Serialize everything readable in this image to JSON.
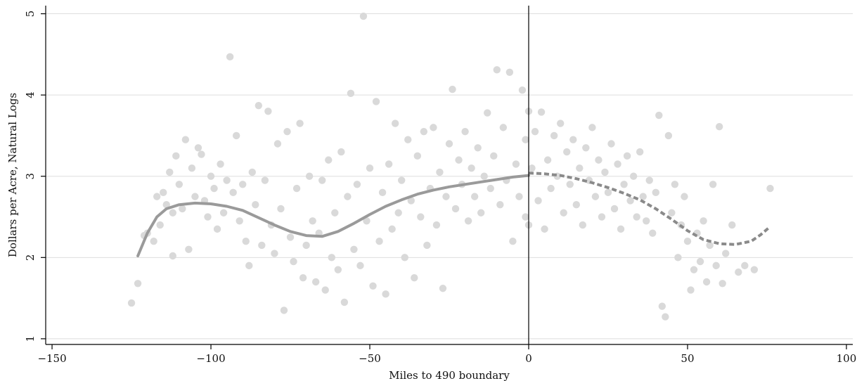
{
  "chart_data": {
    "type": "scatter",
    "title": "",
    "xlabel": "Miles to 490 boundary",
    "ylabel": "Dollars per Acre, Natural Logs",
    "xlim": [
      -152,
      102
    ],
    "ylim": [
      0.93,
      5.1
    ],
    "x_ticks": [
      -150,
      -100,
      -50,
      0,
      50,
      100
    ],
    "x_tick_labels": [
      "−150",
      "−100",
      "−50",
      "0",
      "50",
      "100"
    ],
    "y_ticks": [
      1,
      2,
      3,
      4,
      5
    ],
    "y_tick_labels": [
      "1",
      "2",
      "3",
      "4",
      "5"
    ],
    "grid": "horizontal",
    "legend": "none",
    "boundary_line_x": 0,
    "colors": {
      "points": "#d9d9d9",
      "fit_left": "#9a9a9a",
      "fit_right": "#8a8a8a",
      "grid": "#dedede",
      "axis": "#000000"
    },
    "series": [
      {
        "kind": "scatter",
        "values": [
          [
            -125,
            1.44
          ],
          [
            -123,
            1.68
          ],
          [
            -121,
            2.27
          ],
          [
            -120,
            2.3
          ],
          [
            -118,
            2.2
          ],
          [
            -117,
            2.75
          ],
          [
            -116,
            2.4
          ],
          [
            -115,
            2.8
          ],
          [
            -114,
            2.65
          ],
          [
            -113,
            3.05
          ],
          [
            -112,
            2.55
          ],
          [
            -112,
            2.02
          ],
          [
            -111,
            3.25
          ],
          [
            -110,
            2.9
          ],
          [
            -109,
            2.6
          ],
          [
            -108,
            3.45
          ],
          [
            -107,
            2.1
          ],
          [
            -106,
            3.1
          ],
          [
            -105,
            2.75
          ],
          [
            -104,
            3.35
          ],
          [
            -103,
            3.27
          ],
          [
            -102,
            2.7
          ],
          [
            -101,
            2.5
          ],
          [
            -100,
            3.0
          ],
          [
            -99,
            2.85
          ],
          [
            -98,
            2.35
          ],
          [
            -97,
            3.15
          ],
          [
            -96,
            2.55
          ],
          [
            -95,
            2.95
          ],
          [
            -94,
            4.47
          ],
          [
            -93,
            2.8
          ],
          [
            -92,
            3.5
          ],
          [
            -91,
            2.45
          ],
          [
            -90,
            2.9
          ],
          [
            -89,
            2.2
          ],
          [
            -88,
            1.9
          ],
          [
            -87,
            3.05
          ],
          [
            -86,
            2.65
          ],
          [
            -85,
            3.87
          ],
          [
            -84,
            2.15
          ],
          [
            -83,
            2.95
          ],
          [
            -82,
            3.8
          ],
          [
            -81,
            2.4
          ],
          [
            -80,
            2.05
          ],
          [
            -79,
            3.4
          ],
          [
            -78,
            2.6
          ],
          [
            -77,
            1.35
          ],
          [
            -76,
            3.55
          ],
          [
            -75,
            2.25
          ],
          [
            -74,
            1.95
          ],
          [
            -73,
            2.85
          ],
          [
            -72,
            3.65
          ],
          [
            -71,
            1.75
          ],
          [
            -70,
            2.15
          ],
          [
            -69,
            3.0
          ],
          [
            -68,
            2.45
          ],
          [
            -67,
            1.7
          ],
          [
            -66,
            2.3
          ],
          [
            -65,
            2.95
          ],
          [
            -64,
            1.6
          ],
          [
            -63,
            3.2
          ],
          [
            -62,
            2.0
          ],
          [
            -61,
            2.55
          ],
          [
            -60,
            1.85
          ],
          [
            -59,
            3.3
          ],
          [
            -58,
            1.45
          ],
          [
            -57,
            2.75
          ],
          [
            -56,
            4.02
          ],
          [
            -55,
            2.1
          ],
          [
            -54,
            2.9
          ],
          [
            -53,
            1.9
          ],
          [
            -52,
            4.97
          ],
          [
            -51,
            2.45
          ],
          [
            -50,
            3.1
          ],
          [
            -49,
            1.65
          ],
          [
            -48,
            3.92
          ],
          [
            -47,
            2.2
          ],
          [
            -46,
            2.8
          ],
          [
            -45,
            1.55
          ],
          [
            -44,
            3.15
          ],
          [
            -43,
            2.35
          ],
          [
            -42,
            3.65
          ],
          [
            -41,
            2.55
          ],
          [
            -40,
            2.95
          ],
          [
            -39,
            2.0
          ],
          [
            -38,
            3.45
          ],
          [
            -37,
            2.7
          ],
          [
            -36,
            1.75
          ],
          [
            -35,
            3.25
          ],
          [
            -34,
            2.5
          ],
          [
            -33,
            3.55
          ],
          [
            -32,
            2.15
          ],
          [
            -31,
            2.85
          ],
          [
            -30,
            3.6
          ],
          [
            -29,
            2.4
          ],
          [
            -28,
            3.05
          ],
          [
            -27,
            1.62
          ],
          [
            -26,
            2.75
          ],
          [
            -25,
            3.4
          ],
          [
            -24,
            4.07
          ],
          [
            -23,
            2.6
          ],
          [
            -22,
            3.2
          ],
          [
            -21,
            2.9
          ],
          [
            -20,
            3.55
          ],
          [
            -19,
            2.45
          ],
          [
            -18,
            3.1
          ],
          [
            -17,
            2.75
          ],
          [
            -16,
            3.35
          ],
          [
            -15,
            2.55
          ],
          [
            -14,
            3.0
          ],
          [
            -13,
            3.78
          ],
          [
            -12,
            2.85
          ],
          [
            -11,
            3.25
          ],
          [
            -10,
            4.31
          ],
          [
            -9,
            2.65
          ],
          [
            -8,
            3.6
          ],
          [
            -7,
            2.95
          ],
          [
            -6,
            4.28
          ],
          [
            -5,
            2.2
          ],
          [
            -4,
            3.15
          ],
          [
            -3,
            2.75
          ],
          [
            -2,
            4.06
          ],
          [
            -1,
            3.45
          ],
          [
            -1,
            2.5
          ],
          [
            0,
            3.8
          ],
          [
            0,
            2.4
          ],
          [
            1,
            3.1
          ],
          [
            2,
            3.55
          ],
          [
            3,
            2.7
          ],
          [
            4,
            3.79
          ],
          [
            5,
            2.35
          ],
          [
            6,
            3.2
          ],
          [
            7,
            2.85
          ],
          [
            8,
            3.5
          ],
          [
            9,
            3.0
          ],
          [
            10,
            3.65
          ],
          [
            11,
            2.55
          ],
          [
            12,
            3.3
          ],
          [
            13,
            2.9
          ],
          [
            14,
            3.45
          ],
          [
            15,
            2.65
          ],
          [
            16,
            3.1
          ],
          [
            17,
            2.4
          ],
          [
            18,
            3.35
          ],
          [
            19,
            2.95
          ],
          [
            20,
            3.6
          ],
          [
            21,
            2.75
          ],
          [
            22,
            3.2
          ],
          [
            23,
            2.5
          ],
          [
            24,
            3.05
          ],
          [
            25,
            2.8
          ],
          [
            26,
            3.4
          ],
          [
            27,
            2.6
          ],
          [
            28,
            3.15
          ],
          [
            29,
            2.35
          ],
          [
            30,
            2.9
          ],
          [
            31,
            3.25
          ],
          [
            32,
            2.7
          ],
          [
            33,
            3.0
          ],
          [
            34,
            2.5
          ],
          [
            35,
            3.3
          ],
          [
            36,
            2.75
          ],
          [
            37,
            2.45
          ],
          [
            38,
            2.95
          ],
          [
            39,
            2.3
          ],
          [
            40,
            2.8
          ],
          [
            41,
            3.75
          ],
          [
            42,
            1.4
          ],
          [
            43,
            1.27
          ],
          [
            44,
            3.5
          ],
          [
            45,
            2.55
          ],
          [
            46,
            2.9
          ],
          [
            47,
            2.0
          ],
          [
            48,
            2.4
          ],
          [
            49,
            2.75
          ],
          [
            50,
            2.2
          ],
          [
            51,
            1.6
          ],
          [
            52,
            1.85
          ],
          [
            53,
            2.3
          ],
          [
            54,
            1.95
          ],
          [
            55,
            2.45
          ],
          [
            56,
            1.7
          ],
          [
            57,
            2.15
          ],
          [
            58,
            2.9
          ],
          [
            59,
            1.9
          ],
          [
            60,
            3.61
          ],
          [
            61,
            1.68
          ],
          [
            62,
            2.05
          ],
          [
            64,
            2.4
          ],
          [
            66,
            1.82
          ],
          [
            68,
            1.9
          ],
          [
            71,
            1.85
          ],
          [
            76,
            2.85
          ]
        ]
      },
      {
        "kind": "fit-left",
        "values": [
          [
            -123,
            2.02
          ],
          [
            -120,
            2.3
          ],
          [
            -117,
            2.5
          ],
          [
            -114,
            2.6
          ],
          [
            -110,
            2.65
          ],
          [
            -105,
            2.67
          ],
          [
            -100,
            2.66
          ],
          [
            -95,
            2.63
          ],
          [
            -90,
            2.58
          ],
          [
            -85,
            2.49
          ],
          [
            -80,
            2.4
          ],
          [
            -75,
            2.32
          ],
          [
            -70,
            2.27
          ],
          [
            -65,
            2.26
          ],
          [
            -60,
            2.32
          ],
          [
            -55,
            2.42
          ],
          [
            -50,
            2.53
          ],
          [
            -45,
            2.63
          ],
          [
            -40,
            2.71
          ],
          [
            -35,
            2.78
          ],
          [
            -30,
            2.83
          ],
          [
            -25,
            2.87
          ],
          [
            -20,
            2.9
          ],
          [
            -15,
            2.93
          ],
          [
            -10,
            2.96
          ],
          [
            -5,
            2.99
          ],
          [
            0,
            3.01
          ]
        ]
      },
      {
        "kind": "fit-right",
        "values": [
          [
            0,
            3.04
          ],
          [
            5,
            3.03
          ],
          [
            10,
            3.01
          ],
          [
            15,
            2.97
          ],
          [
            20,
            2.92
          ],
          [
            25,
            2.86
          ],
          [
            30,
            2.79
          ],
          [
            35,
            2.71
          ],
          [
            40,
            2.6
          ],
          [
            45,
            2.47
          ],
          [
            50,
            2.33
          ],
          [
            55,
            2.22
          ],
          [
            60,
            2.17
          ],
          [
            65,
            2.16
          ],
          [
            70,
            2.2
          ],
          [
            73,
            2.28
          ],
          [
            76,
            2.38
          ]
        ]
      }
    ]
  }
}
